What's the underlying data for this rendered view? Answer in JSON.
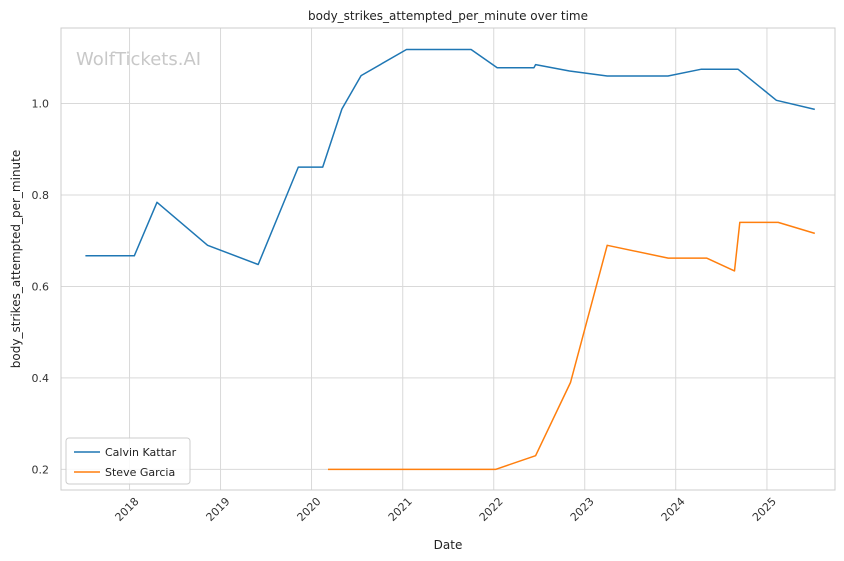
{
  "chart_data": {
    "type": "line",
    "title": "body_strikes_attempted_per_minute over time",
    "xlabel": "Date",
    "ylabel": "body_strikes_attempted_per_minute",
    "watermark": "WolfTickets.AI",
    "x_ticks": [
      "2018",
      "2019",
      "2020",
      "2021",
      "2022",
      "2023",
      "2024",
      "2025"
    ],
    "y_ticks": [
      0.2,
      0.4,
      0.6,
      0.8,
      1.0
    ],
    "xlim": [
      "2017-04-01",
      "2025-10-01"
    ],
    "ylim": [
      0.155,
      1.165
    ],
    "grid": true,
    "legend_position": "lower-left",
    "series": [
      {
        "name": "Calvin Kattar",
        "color": "#1f77b4",
        "points": [
          [
            "2017-07-08",
            0.667
          ],
          [
            "2018-01-20",
            0.667
          ],
          [
            "2018-04-21",
            0.784
          ],
          [
            "2018-11-10",
            0.69
          ],
          [
            "2019-06-01",
            0.648
          ],
          [
            "2019-11-09",
            0.861
          ],
          [
            "2020-02-15",
            0.861
          ],
          [
            "2020-05-02",
            0.988
          ],
          [
            "2020-07-18",
            1.061
          ],
          [
            "2021-01-16",
            1.118
          ],
          [
            "2021-10-02",
            1.118
          ],
          [
            "2022-01-15",
            1.078
          ],
          [
            "2022-06-11",
            1.078
          ],
          [
            "2022-06-18",
            1.085
          ],
          [
            "2022-11-01",
            1.071
          ],
          [
            "2023-04-01",
            1.06
          ],
          [
            "2023-12-01",
            1.06
          ],
          [
            "2024-04-13",
            1.075
          ],
          [
            "2024-09-07",
            1.075
          ],
          [
            "2025-02-08",
            1.007
          ],
          [
            "2025-07-12",
            0.987
          ]
        ]
      },
      {
        "name": "Steve Garcia",
        "color": "#ff7f0e",
        "points": [
          [
            "2020-03-07",
            0.2
          ],
          [
            "2022-01-08",
            0.2
          ],
          [
            "2022-06-18",
            0.23
          ],
          [
            "2022-11-05",
            0.39
          ],
          [
            "2023-04-01",
            0.69
          ],
          [
            "2023-12-02",
            0.662
          ],
          [
            "2024-05-04",
            0.662
          ],
          [
            "2024-08-24",
            0.634
          ],
          [
            "2024-09-14",
            0.74
          ],
          [
            "2025-02-15",
            0.74
          ],
          [
            "2025-07-12",
            0.716
          ]
        ]
      }
    ]
  }
}
